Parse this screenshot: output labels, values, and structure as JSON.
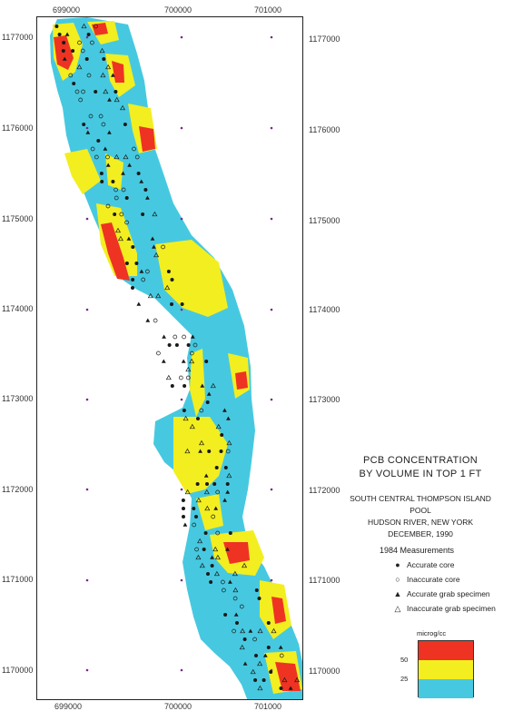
{
  "map": {
    "x_ticks": [
      "699000",
      "700000",
      "701000"
    ],
    "y_ticks": [
      "1177000",
      "1176000",
      "1175000",
      "1174000",
      "1173000",
      "1172000",
      "1171000",
      "1170000"
    ],
    "colors": {
      "high": "#ee3322",
      "mid": "#f3ee20",
      "low": "#46c9e0",
      "grid_marker": "#7a2a8a",
      "ink": "#1a1a1a"
    }
  },
  "legend": {
    "title_line1": "PCB CONCENTRATION",
    "title_line2": "BY VOLUME IN TOP 1 FT",
    "sub_line1": "SOUTH CENTRAL THOMPSON ISLAND POOL",
    "sub_line2": "HUDSON RIVER, NEW YORK",
    "sub_line3": "DECEMBER, 1990",
    "measurements_title": "1984 Measurements",
    "items": [
      {
        "symbol": "filled-circle",
        "label": "Accurate core"
      },
      {
        "symbol": "open-circle",
        "label": "Inaccurate core"
      },
      {
        "symbol": "filled-triangle",
        "label": "Accurate grab specimen"
      },
      {
        "symbol": "open-triangle",
        "label": "Inaccurate grab specimen"
      }
    ],
    "unit": "microg/cc",
    "scale_labels": [
      "50",
      "25"
    ]
  }
}
